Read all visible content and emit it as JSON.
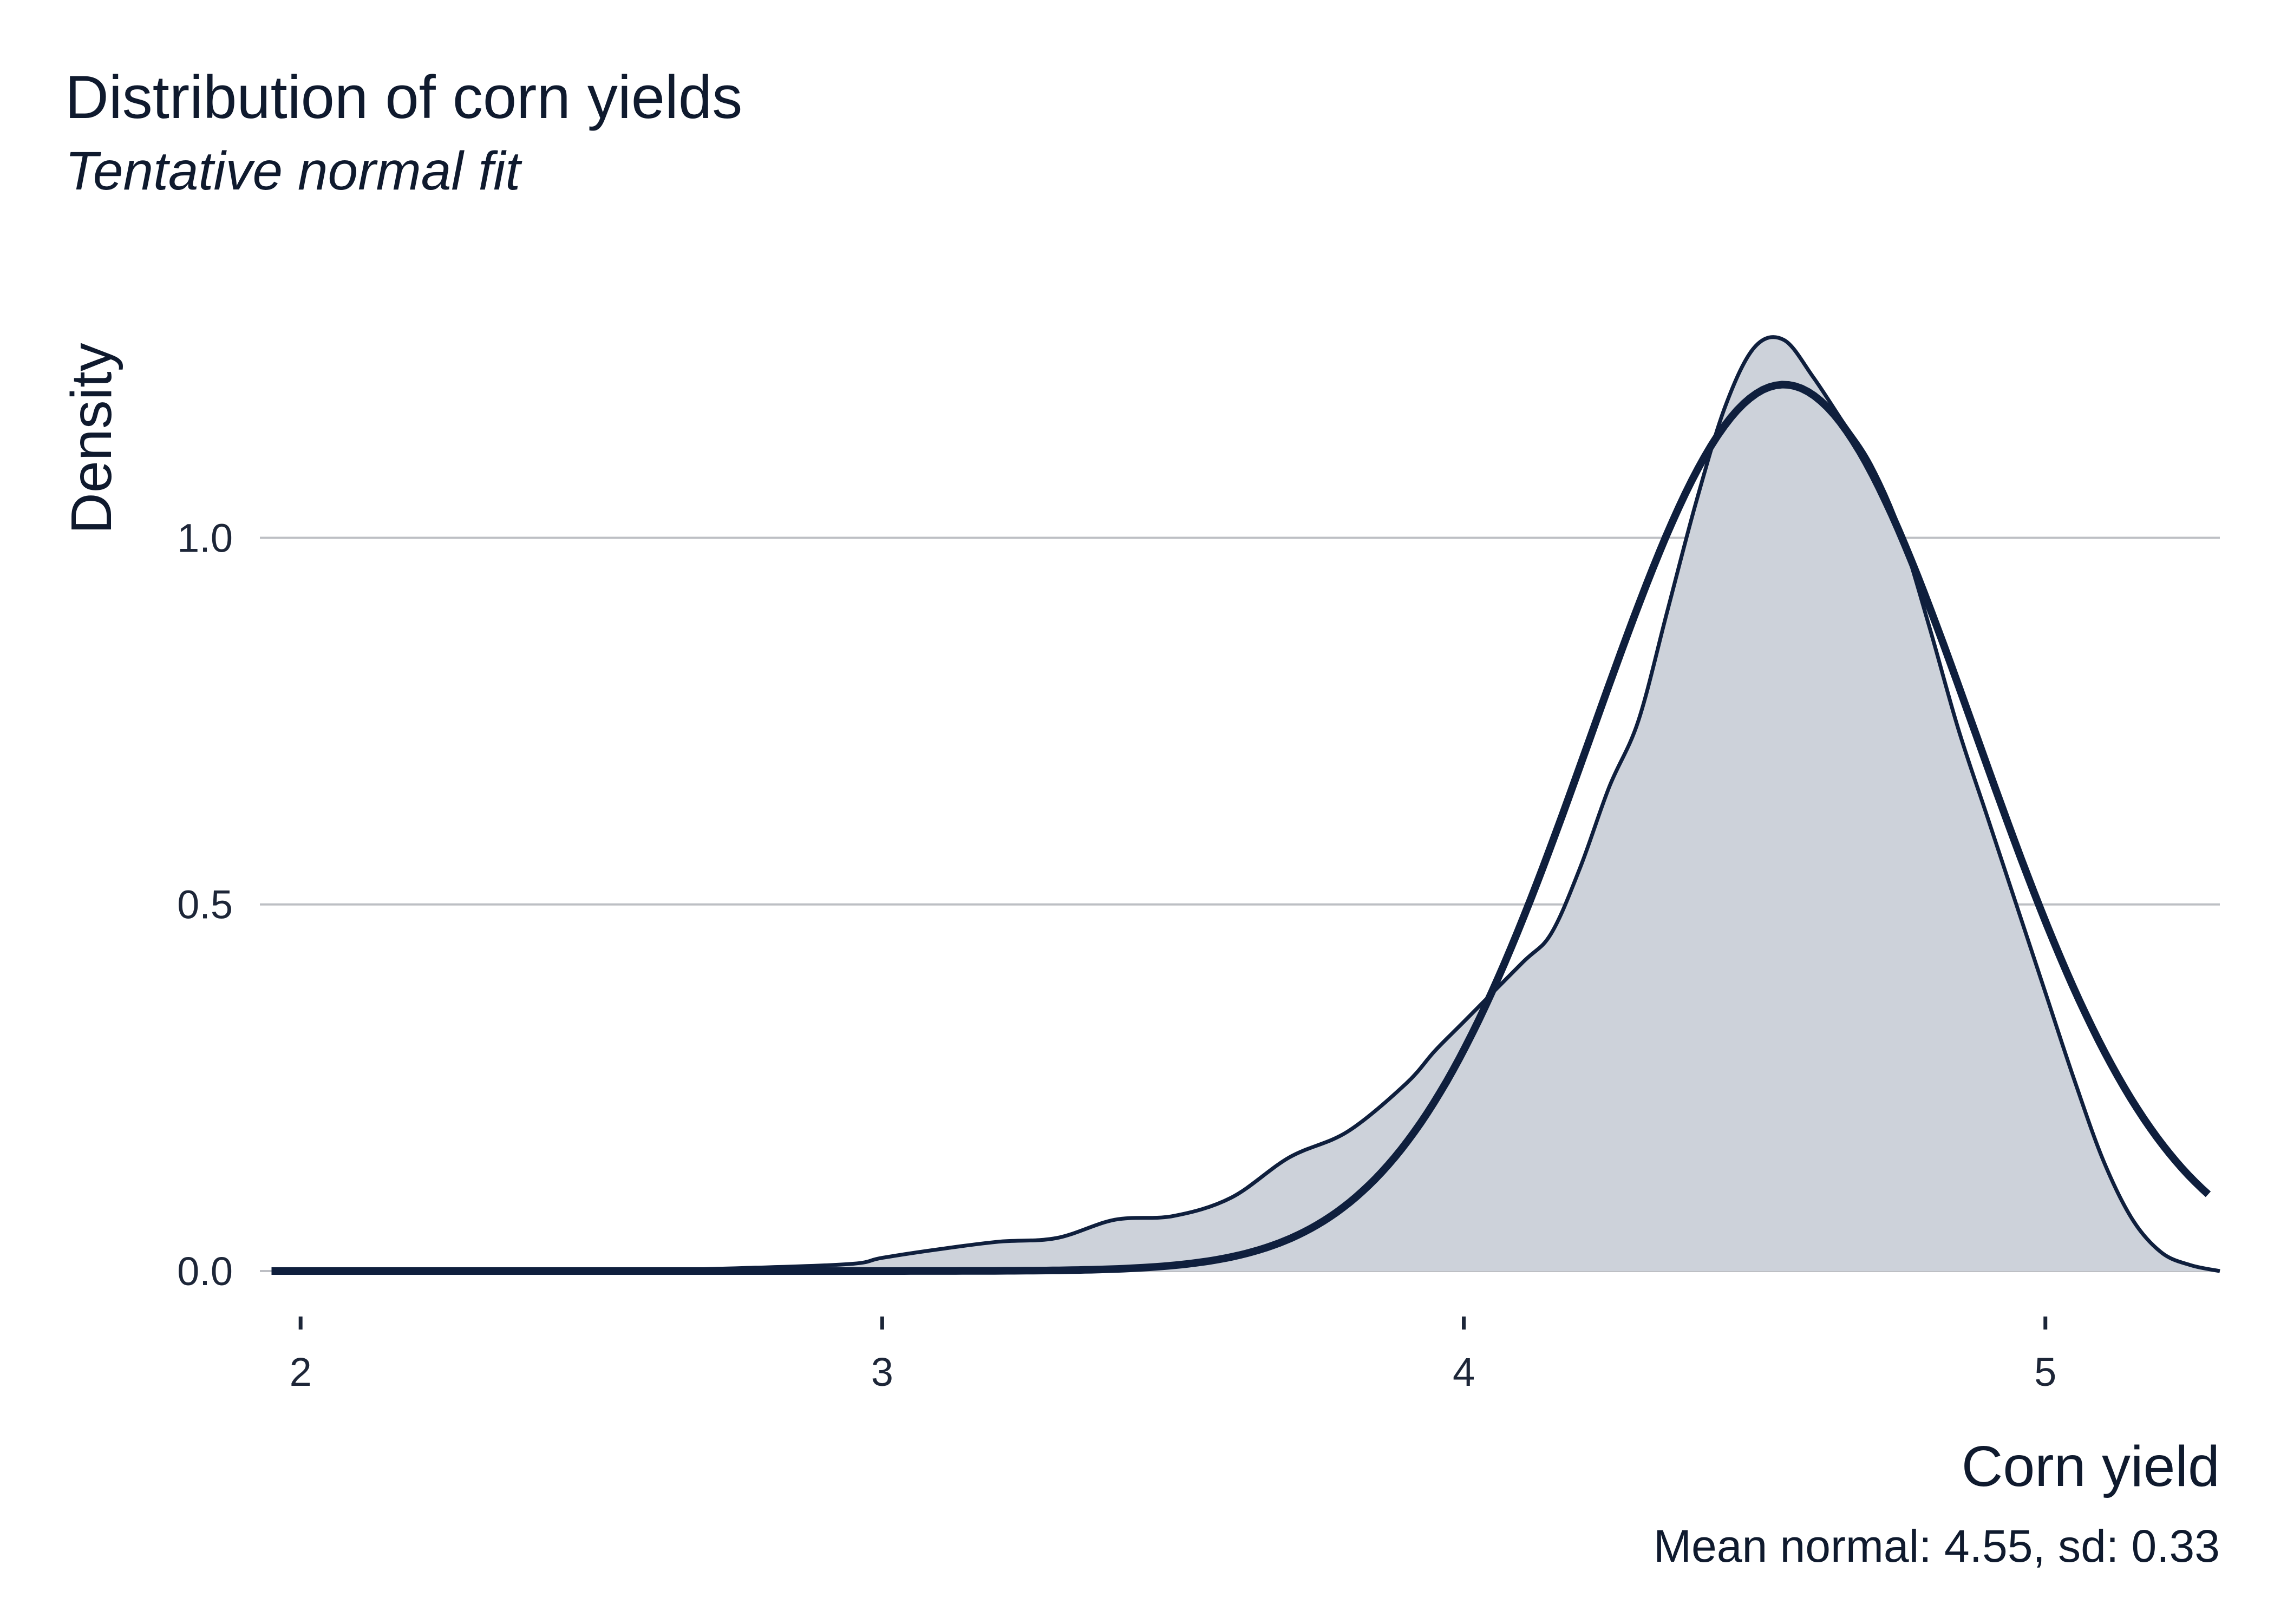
{
  "chart_data": {
    "type": "area",
    "title": "Distribution of corn yields",
    "subtitle": "Tentative normal fit",
    "xlabel": "Corn yield",
    "ylabel": "Density",
    "caption": "Mean normal: 4.55, sd: 0.33",
    "xlim": [
      1.93,
      5.3
    ],
    "ylim": [
      0,
      1.32
    ],
    "x_ticks": [
      2,
      3,
      4,
      5
    ],
    "y_ticks": [
      0.0,
      0.5,
      1.0
    ],
    "x_tick_labels": [
      "2",
      "3",
      "4",
      "5"
    ],
    "y_tick_labels": [
      "0.0",
      "0.5",
      "1.0"
    ],
    "grid": "horizontal",
    "legend": "none",
    "colors": {
      "fill": "#cdd2da",
      "line": "#0f1f3d",
      "grid": "#bdbfc4"
    },
    "series": [
      {
        "kind": "density",
        "x": [
          1.95,
          2.5,
          2.8,
          2.95,
          3.0,
          3.1,
          3.2,
          3.3,
          3.4,
          3.5,
          3.6,
          3.7,
          3.8,
          3.9,
          3.95,
          4.0,
          4.1,
          4.15,
          4.2,
          4.25,
          4.3,
          4.35,
          4.4,
          4.45,
          4.5,
          4.55,
          4.6,
          4.65,
          4.7,
          4.75,
          4.8,
          4.85,
          4.9,
          4.95,
          5.0,
          5.05,
          5.1,
          5.15,
          5.2,
          5.25,
          5.3
        ],
        "y": [
          0.0,
          0.0,
          0.005,
          0.01,
          0.018,
          0.03,
          0.04,
          0.045,
          0.07,
          0.075,
          0.1,
          0.155,
          0.19,
          0.255,
          0.3,
          0.34,
          0.42,
          0.46,
          0.55,
          0.66,
          0.75,
          0.9,
          1.05,
          1.18,
          1.26,
          1.27,
          1.22,
          1.16,
          1.1,
          1.01,
          0.88,
          0.74,
          0.62,
          0.5,
          0.38,
          0.26,
          0.15,
          0.07,
          0.025,
          0.008,
          0.0
        ]
      },
      {
        "kind": "normal-fit",
        "mean": 4.55,
        "sd": 0.33,
        "x_range": [
          1.95,
          5.28
        ]
      }
    ]
  }
}
